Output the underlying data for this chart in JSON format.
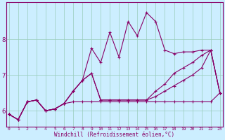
{
  "xlabel": "Windchill (Refroidissement éolien,°C)",
  "bg_color": "#cceeff",
  "line_color": "#880066",
  "grid_color": "#99ccbb",
  "x_ticks": [
    0,
    1,
    2,
    3,
    4,
    5,
    6,
    7,
    8,
    9,
    10,
    11,
    12,
    13,
    14,
    15,
    16,
    17,
    18,
    19,
    20,
    21,
    22,
    23
  ],
  "y_ticks": [
    6,
    7,
    8
  ],
  "ylim": [
    5.55,
    9.05
  ],
  "xlim": [
    -0.3,
    23.3
  ],
  "series": [
    [
      5.9,
      5.75,
      6.25,
      6.3,
      6.0,
      6.05,
      6.2,
      6.25,
      6.25,
      6.25,
      6.25,
      6.25,
      6.25,
      6.25,
      6.25,
      6.25,
      6.25,
      6.25,
      6.25,
      6.25,
      6.25,
      6.25,
      6.25,
      6.5
    ],
    [
      5.9,
      5.75,
      6.25,
      6.3,
      6.0,
      6.05,
      6.2,
      6.55,
      6.85,
      7.75,
      7.35,
      8.2,
      7.5,
      8.5,
      8.1,
      8.75,
      8.5,
      7.7,
      7.6,
      7.65,
      7.65,
      7.7,
      7.7,
      6.5
    ],
    [
      5.9,
      5.75,
      6.25,
      6.3,
      6.0,
      6.05,
      6.2,
      6.55,
      6.85,
      7.05,
      6.3,
      6.3,
      6.3,
      6.3,
      6.3,
      6.3,
      6.55,
      6.75,
      7.05,
      7.2,
      7.35,
      7.55,
      7.7,
      6.5
    ],
    [
      5.9,
      5.75,
      6.25,
      6.3,
      6.0,
      6.05,
      6.2,
      6.55,
      6.85,
      7.05,
      6.3,
      6.3,
      6.3,
      6.3,
      6.3,
      6.3,
      6.4,
      6.55,
      6.7,
      6.85,
      7.0,
      7.2,
      7.7,
      6.5
    ]
  ]
}
